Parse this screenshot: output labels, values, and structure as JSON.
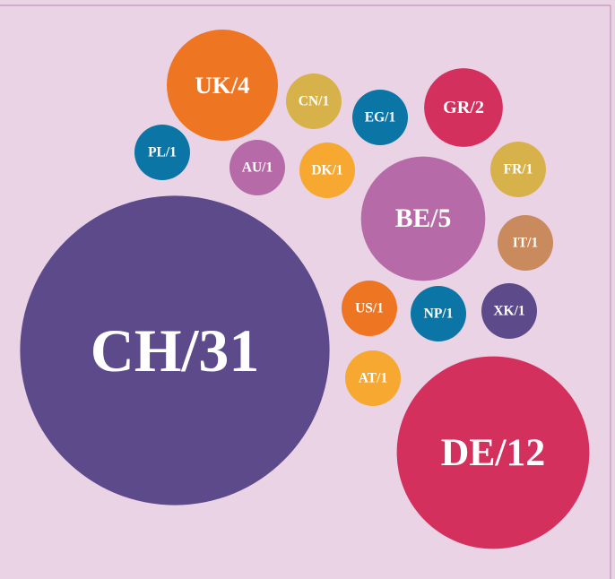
{
  "chart_data": {
    "type": "bubble",
    "values": [
      4,
      1,
      1,
      2,
      1,
      1,
      1,
      1,
      5,
      1,
      31,
      1,
      1,
      1,
      1,
      12
    ],
    "value_labels": [
      "UK/4",
      "CN/1",
      "EG/1",
      "GR/2",
      "PL/1",
      "AU/1",
      "DK/1",
      "FR/1",
      "BE/5",
      "IT/1",
      "CH/31",
      "US/1",
      "NP/1",
      "XK/1",
      "AT/1",
      "DE/12"
    ],
    "colors": [
      "#ee7623",
      "#d7b24b",
      "#0b76a6",
      "#d4305e",
      "#0b76a6",
      "#b66aa7",
      "#f6a831",
      "#d7b24b",
      "#b66aa7",
      "#c98a5e",
      "#5c4a8b",
      "#ee7623",
      "#0b76a6",
      "#5c4a8b",
      "#f6a831",
      "#d4305e"
    ]
  }
}
